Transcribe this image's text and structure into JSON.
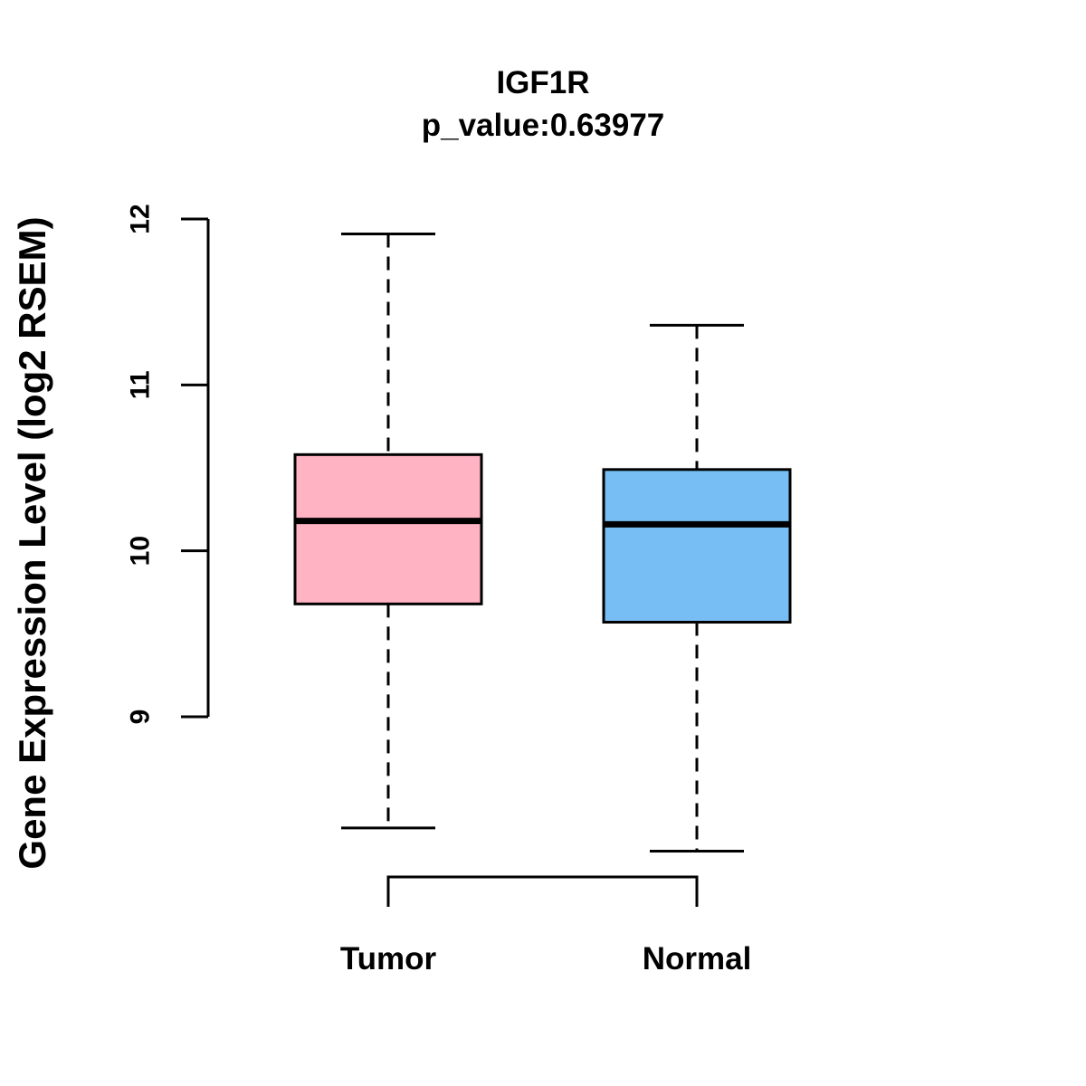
{
  "title": "IGF1R",
  "subtitle": "p_value:0.63977",
  "p_value": "0.63977",
  "y_axis": {
    "label": "Gene Expression Level (log2 RSEM)",
    "tick_labels": [
      "9",
      "10",
      "11",
      "12"
    ]
  },
  "x_axis": {
    "categories": [
      "Tumor",
      "Normal"
    ]
  },
  "colors": {
    "tumor_box_fill": "#FFB3C3",
    "normal_box_fill": "#77BEF5",
    "stroke": "#000000",
    "background": "#FFFFFF"
  },
  "chart_data": {
    "type": "boxplot",
    "title": "IGF1R",
    "subtitle": "p_value:0.63977",
    "ylabel": "Gene Expression Level (log2 RSEM)",
    "xlabel": "",
    "categories": [
      "Tumor",
      "Normal"
    ],
    "y_ticks": [
      9,
      10,
      11,
      12
    ],
    "ylim": [
      8.0,
      12.1
    ],
    "grid": false,
    "legend": null,
    "series": [
      {
        "name": "Tumor",
        "color": "#FFB3C3",
        "whisker_low": 8.33,
        "q1": 9.68,
        "median": 10.18,
        "q3": 10.58,
        "whisker_high": 11.91
      },
      {
        "name": "Normal",
        "color": "#77BEF5",
        "whisker_low": 8.19,
        "q1": 9.57,
        "median": 10.16,
        "q3": 10.49,
        "whisker_high": 11.36
      }
    ]
  }
}
